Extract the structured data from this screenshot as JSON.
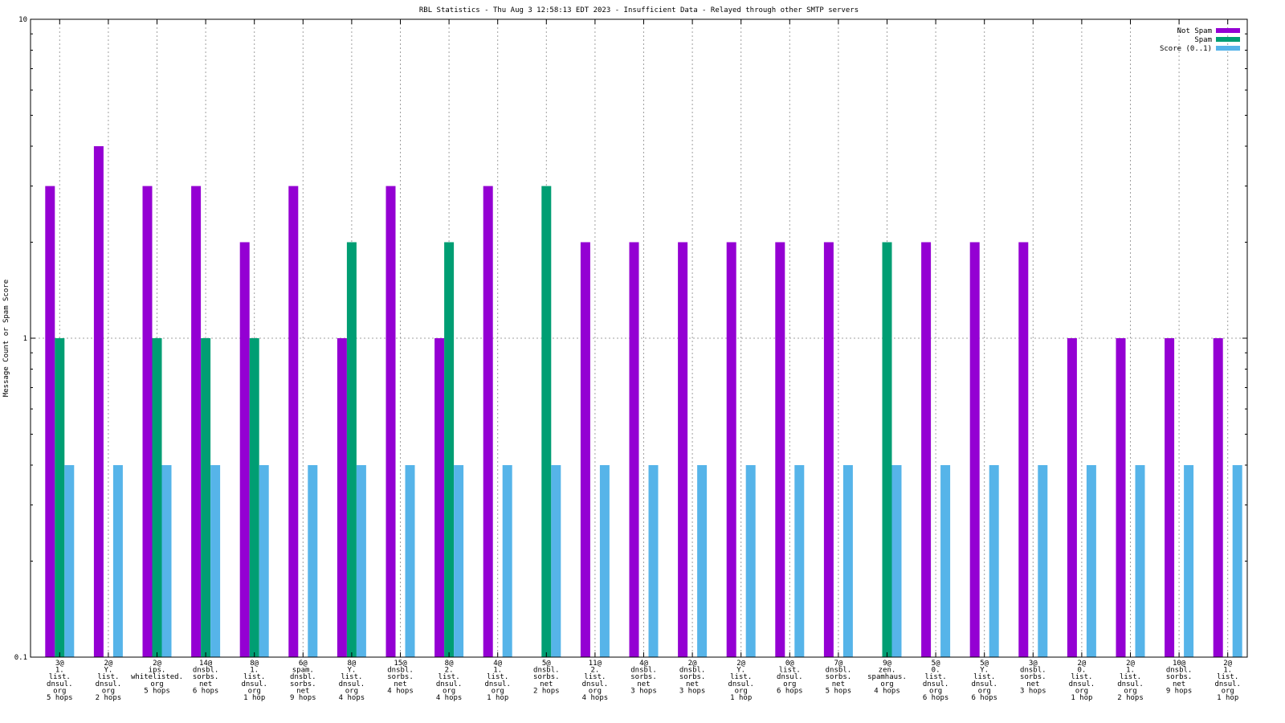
{
  "chart_data": {
    "type": "bar",
    "title": "RBL Statistics - Thu Aug  3 12:58:13 EDT 2023 - Insufficient Data - Relayed through other SMTP servers",
    "xlabel": "",
    "ylabel": "Message Count or Spam Score",
    "y_scale": "log",
    "ylim": [
      0.1,
      10
    ],
    "yticks": [
      "0.1",
      "1",
      "10"
    ],
    "grid": true,
    "legend_position": "top-right",
    "categories": [
      [
        "3@",
        "1.",
        "list.",
        "dnsul.",
        "org",
        "5 hops"
      ],
      [
        "2@",
        "Y.",
        "list.",
        "dnsul.",
        "org",
        "2 hops"
      ],
      [
        "2@",
        "ips.",
        "whitelisted.",
        "org",
        "5 hops"
      ],
      [
        "14@",
        "dnsbl.",
        "sorbs.",
        "net",
        "6 hops"
      ],
      [
        "8@",
        "1.",
        "list.",
        "dnsul.",
        "org",
        "1 hop"
      ],
      [
        "6@",
        "spam.",
        "dnsbl.",
        "sorbs.",
        "net",
        "9 hops"
      ],
      [
        "8@",
        "Y.",
        "list.",
        "dnsul.",
        "org",
        "4 hops"
      ],
      [
        "15@",
        "dnsbl.",
        "sorbs.",
        "net",
        "4 hops"
      ],
      [
        "8@",
        "2.",
        "list.",
        "dnsul.",
        "org",
        "4 hops"
      ],
      [
        "4@",
        "1.",
        "list.",
        "dnsul.",
        "org",
        "1 hop"
      ],
      [
        "5@",
        "dnsbl.",
        "sorbs.",
        "net",
        "2 hops"
      ],
      [
        "11@",
        "2.",
        "list.",
        "dnsul.",
        "org",
        "4 hops"
      ],
      [
        "4@",
        "dnsbl.",
        "sorbs.",
        "net",
        "3 hops"
      ],
      [
        "2@",
        "dnsbl.",
        "sorbs.",
        "net",
        "3 hops"
      ],
      [
        "2@",
        "Y.",
        "list.",
        "dnsul.",
        "org",
        "1 hop"
      ],
      [
        "0@",
        "list.",
        "dnsul.",
        "org",
        "6 hops"
      ],
      [
        "7@",
        "dnsbl.",
        "sorbs.",
        "net",
        "5 hops"
      ],
      [
        "9@",
        "zen.",
        "spamhaus.",
        "org",
        "4 hops"
      ],
      [
        "5@",
        "0.",
        "list.",
        "dnsul.",
        "org",
        "6 hops"
      ],
      [
        "5@",
        "Y.",
        "list.",
        "dnsul.",
        "org",
        "6 hops"
      ],
      [
        "3@",
        "dnsbl.",
        "sorbs.",
        "net",
        "3 hops"
      ],
      [
        "2@",
        "0.",
        "list.",
        "dnsul.",
        "org",
        "1 hop"
      ],
      [
        "2@",
        "1.",
        "list.",
        "dnsul.",
        "org",
        "2 hops"
      ],
      [
        "10@",
        "dnsbl.",
        "sorbs.",
        "net",
        "9 hops"
      ],
      [
        "2@",
        "1.",
        "list.",
        "dnsul.",
        "org",
        "1 hop"
      ]
    ],
    "series": [
      {
        "name": "Not Spam",
        "color": "#9400d3",
        "values": [
          3,
          4,
          3,
          3,
          2,
          3,
          1,
          3,
          1,
          3,
          null,
          2,
          2,
          2,
          2,
          2,
          2,
          null,
          2,
          2,
          2,
          1,
          1,
          1,
          1
        ]
      },
      {
        "name": "Spam",
        "color": "#009e73",
        "values": [
          1,
          null,
          1,
          1,
          1,
          null,
          2,
          null,
          2,
          null,
          3,
          null,
          null,
          null,
          null,
          null,
          null,
          2,
          null,
          null,
          null,
          null,
          null,
          null,
          null
        ]
      },
      {
        "name": "Score (0..1)",
        "color": "#56b4e9",
        "values": [
          0.4,
          0.4,
          0.4,
          0.4,
          0.4,
          0.4,
          0.4,
          0.4,
          0.4,
          0.4,
          0.4,
          0.4,
          0.4,
          0.4,
          0.4,
          0.4,
          0.4,
          0.4,
          0.4,
          0.4,
          0.4,
          0.4,
          0.4,
          0.4,
          0.4
        ]
      }
    ]
  }
}
